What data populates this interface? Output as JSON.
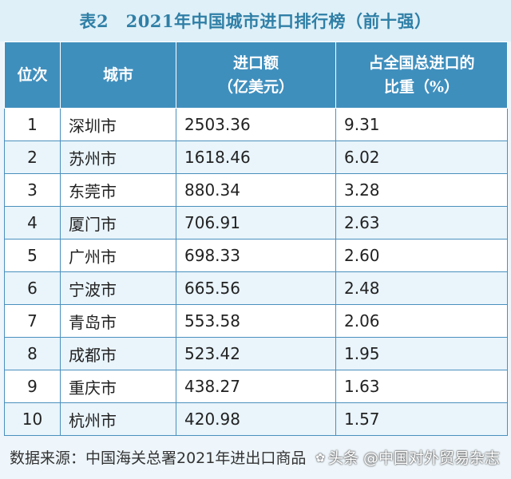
{
  "title": "表2　2021年中国城市进口排行榜（前十强）",
  "headers": {
    "rank": "位次",
    "city": "城市",
    "amount_line1": "进口额",
    "amount_line2": "（亿美元）",
    "share_line1": "占全国总进口的",
    "share_line2": "比重（%）"
  },
  "rows": [
    {
      "rank": "1",
      "city": "深圳市",
      "amount": "2503.36",
      "share": "9.31"
    },
    {
      "rank": "2",
      "city": "苏州市",
      "amount": "1618.46",
      "share": "6.02"
    },
    {
      "rank": "3",
      "city": "东莞市",
      "amount": "880.34",
      "share": "3.28"
    },
    {
      "rank": "4",
      "city": "厦门市",
      "amount": "706.91",
      "share": "2.63"
    },
    {
      "rank": "5",
      "city": "广州市",
      "amount": "698.33",
      "share": "2.60"
    },
    {
      "rank": "6",
      "city": "宁波市",
      "amount": "665.56",
      "share": "2.48"
    },
    {
      "rank": "7",
      "city": "青岛市",
      "amount": "553.58",
      "share": "2.06"
    },
    {
      "rank": "8",
      "city": "成都市",
      "amount": "523.42",
      "share": "1.95"
    },
    {
      "rank": "9",
      "city": "重庆市",
      "amount": "438.27",
      "share": "1.63"
    },
    {
      "rank": "10",
      "city": "杭州市",
      "amount": "420.98",
      "share": "1.57"
    }
  ],
  "source": "数据来源：中国海关总署2021年进出口商品",
  "watermark": "头条 @中国对外贸易杂志",
  "watermark_icon": "logo-icon",
  "colors": {
    "header_bg": "#3f8fbd",
    "title_text": "#2f7fa6",
    "title_bg": "#dff0f8",
    "row_alt_bg": "#e9f4fb",
    "grid": "#4a90bd"
  }
}
